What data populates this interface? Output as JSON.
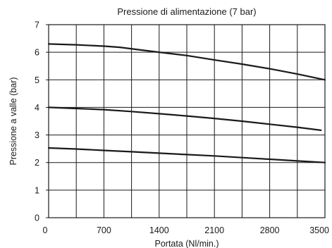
{
  "chart_data": {
    "type": "line",
    "title": "Pressione di alimentazione (7 bar)",
    "xlabel": "Portata (Nl/min.)",
    "ylabel": "Pressione a valle (bar)",
    "xlim": [
      0,
      3500
    ],
    "ylim": [
      0,
      7
    ],
    "x_ticks": [
      0,
      700,
      1400,
      2100,
      2800,
      3500
    ],
    "y_ticks": [
      0,
      1,
      2,
      3,
      4,
      5,
      6,
      7
    ],
    "x_grid_step": 350,
    "y_grid_step": 1,
    "grid": true,
    "legend": "none",
    "series": [
      {
        "x": [
          0,
          350,
          700,
          900,
          1200,
          1400,
          1750,
          2100,
          2450,
          2800,
          3150,
          3500
        ],
        "y": [
          6.3,
          6.27,
          6.22,
          6.18,
          6.07,
          6.0,
          5.88,
          5.72,
          5.57,
          5.4,
          5.21,
          5.0
        ]
      },
      {
        "x": [
          0,
          350,
          700,
          1050,
          1400,
          1750,
          2100,
          2450,
          2800,
          3150,
          3450
        ],
        "y": [
          4.0,
          3.96,
          3.92,
          3.85,
          3.77,
          3.69,
          3.6,
          3.5,
          3.39,
          3.28,
          3.17
        ]
      },
      {
        "x": [
          0,
          350,
          700,
          1050,
          1400,
          1750,
          2100,
          2450,
          2800,
          3150,
          3500
        ],
        "y": [
          2.53,
          2.49,
          2.44,
          2.39,
          2.34,
          2.29,
          2.24,
          2.18,
          2.12,
          2.06,
          2.0
        ]
      }
    ]
  }
}
